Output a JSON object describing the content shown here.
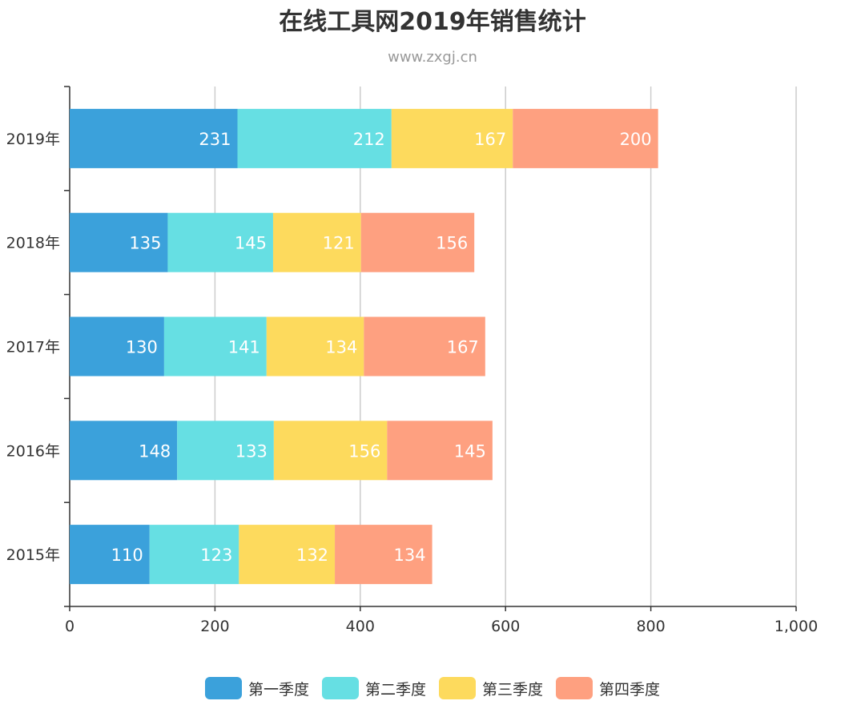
{
  "title": "在线工具网2019年销售统计",
  "subtitle": "www.zxgj.cn",
  "chart_data": {
    "type": "bar",
    "orientation": "horizontal",
    "stacked": true,
    "categories": [
      "2019年",
      "2018年",
      "2017年",
      "2016年",
      "2015年"
    ],
    "series": [
      {
        "name": "第一季度",
        "color": "#3ba1db",
        "values": [
          231,
          135,
          130,
          148,
          110
        ]
      },
      {
        "name": "第二季度",
        "color": "#66dfe3",
        "values": [
          212,
          145,
          141,
          133,
          123
        ]
      },
      {
        "name": "第三季度",
        "color": "#fdda5d",
        "values": [
          167,
          121,
          134,
          156,
          132
        ]
      },
      {
        "name": "第四季度",
        "color": "#fea080",
        "values": [
          200,
          156,
          167,
          145,
          134
        ]
      }
    ],
    "xlim": [
      0,
      1000
    ],
    "x_ticks": [
      "0",
      "200",
      "400",
      "600",
      "800",
      "1,000"
    ],
    "grid": true,
    "legend_position": "bottom"
  }
}
